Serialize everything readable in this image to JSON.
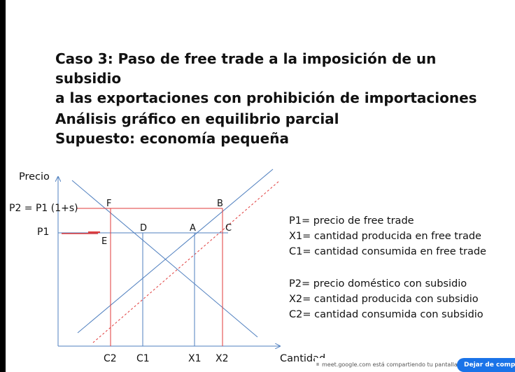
{
  "slide": {
    "title_lines": [
      "Caso 3: Paso de free trade a la imposición de un subsidio",
      "a las exportaciones con prohibición de importaciones"
    ],
    "subtitle_lines": [
      "Análisis gráfico en equilibrio parcial",
      "Supuesto: economía pequeña"
    ]
  },
  "diagram": {
    "axis_y_label": "Precio",
    "axis_x_label": "Cantidad",
    "price_labels": {
      "p2": "P2 = P1 (1+s)",
      "p1": "P1"
    },
    "point_labels": {
      "F": "F",
      "B": "B",
      "D": "D",
      "A": "A",
      "C": "C",
      "E": "E"
    },
    "quantity_labels": [
      "C2",
      "C1",
      "X1",
      "X2"
    ],
    "colors": {
      "lines": "#4f7fbf",
      "red": "#e03a3a",
      "dashed": "#e03a3a",
      "axis": "#4f7fbf"
    }
  },
  "legend": {
    "items": [
      "P1= precio de free trade",
      "X1= cantidad producida en free trade",
      "C1= cantidad consumida en free trade",
      "P2= precio doméstico con subsidio",
      "X2= cantidad producida con subsidio",
      "C2= cantidad consumida con subsidio"
    ]
  },
  "share_bar": {
    "text": "meet.google.com está compartiendo tu pantalla.",
    "button_label": "Dejar de compartir"
  }
}
